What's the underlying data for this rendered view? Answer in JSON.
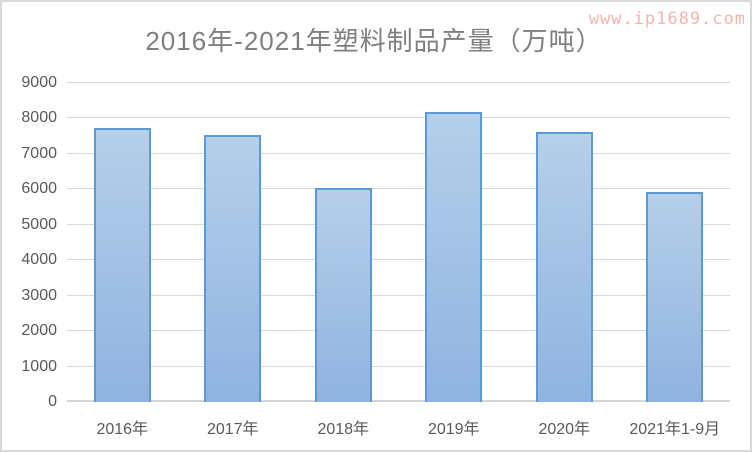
{
  "watermark": {
    "text": "www.ip1689.com",
    "color": "#f5b5ad"
  },
  "frame": {
    "background": "#ffffff",
    "border_color": "#d9d9d9"
  },
  "chart_data": {
    "type": "bar",
    "title": "2016年-2021年塑料制品产量（万吨）",
    "title_color": "#7f7f7f",
    "categories": [
      "2016年",
      "2017年",
      "2018年",
      "2019年",
      "2020年",
      "2021年1-9月"
    ],
    "values": [
      7720,
      7530,
      6040,
      8190,
      7610,
      5930
    ],
    "xlabel": "",
    "ylabel": "",
    "ylim": [
      0,
      9000
    ],
    "yticks": [
      0,
      1000,
      2000,
      3000,
      4000,
      5000,
      6000,
      7000,
      8000,
      9000
    ],
    "grid": "horizontal",
    "legend": "none",
    "gridline_color": "#d9d9d9",
    "axis_line_color": "#d6d6d6",
    "tick_label_color": "#595959",
    "bar_fill_top": "#b6cfea",
    "bar_fill_bottom": "#8fb3e0",
    "bar_border_color": "#5b9bd5"
  }
}
